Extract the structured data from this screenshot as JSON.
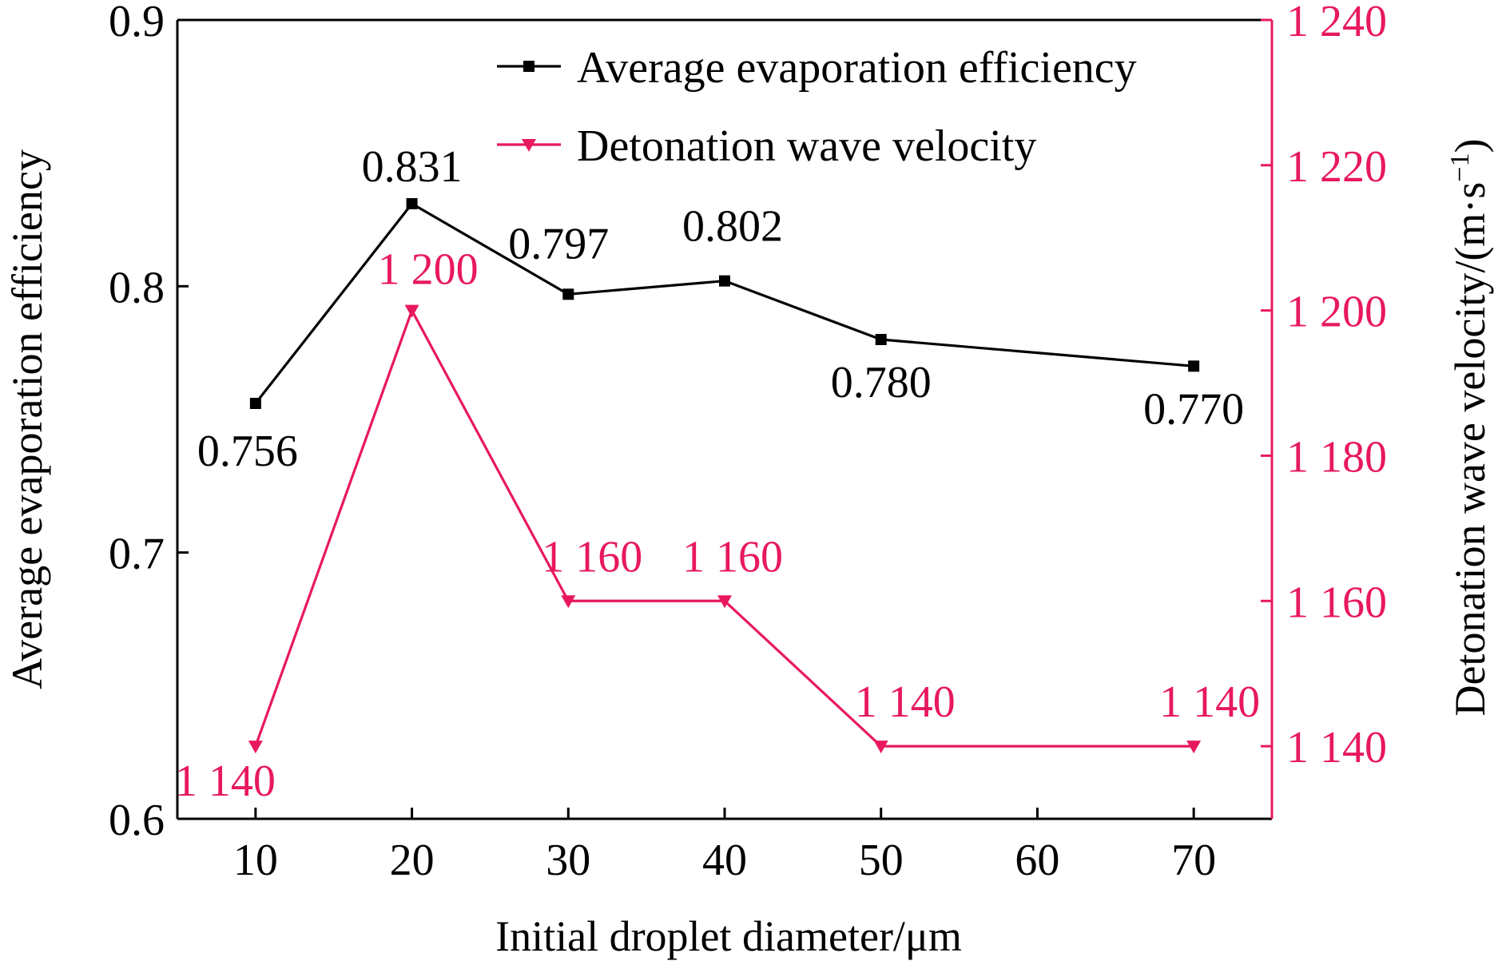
{
  "chart_data": {
    "type": "line",
    "xlabel": "Initial droplet diameter/μm",
    "x_ticks": [
      "10",
      "20",
      "30",
      "40",
      "50",
      "60",
      "70"
    ],
    "xlim": [
      5,
      75
    ],
    "y_left": {
      "label": "Average evaporation efficiency",
      "lim": [
        0.6,
        0.9
      ],
      "ticks": [
        "0.6",
        "0.7",
        "0.8",
        "0.9"
      ],
      "tick_values": [
        0.6,
        0.7,
        0.8,
        0.9
      ]
    },
    "y_right": {
      "label": "Detonation wave velocity/(m·s",
      "label_sup": "−1",
      "label_close": ")",
      "lim": [
        1130,
        1240
      ],
      "ticks": [
        "1 140",
        "1 160",
        "1 180",
        "1 200",
        "1 220",
        "1 240"
      ],
      "tick_values": [
        1140,
        1160,
        1180,
        1200,
        1220,
        1240
      ]
    },
    "series": [
      {
        "name": "Average evaporation efficiency",
        "axis": "left",
        "color": "#000000",
        "marker": "square",
        "x": [
          10,
          20,
          30,
          40,
          50,
          70
        ],
        "values": [
          0.756,
          0.831,
          0.797,
          0.802,
          0.78,
          0.77
        ],
        "labels": [
          "0.756",
          "0.831",
          "0.797",
          "0.802",
          "0.780",
          "0.770"
        ]
      },
      {
        "name": "Detonation wave velocity",
        "axis": "right",
        "color": "#e8185f",
        "marker": "triangle-down",
        "x": [
          10,
          20,
          30,
          40,
          50,
          70
        ],
        "values": [
          1140,
          1200,
          1160,
          1160,
          1140,
          1140
        ],
        "labels": [
          "1 140",
          "1 200",
          "1 160",
          "1 160",
          "1 140",
          "1 140"
        ]
      }
    ],
    "legend_position": "top-right",
    "grid": false
  }
}
